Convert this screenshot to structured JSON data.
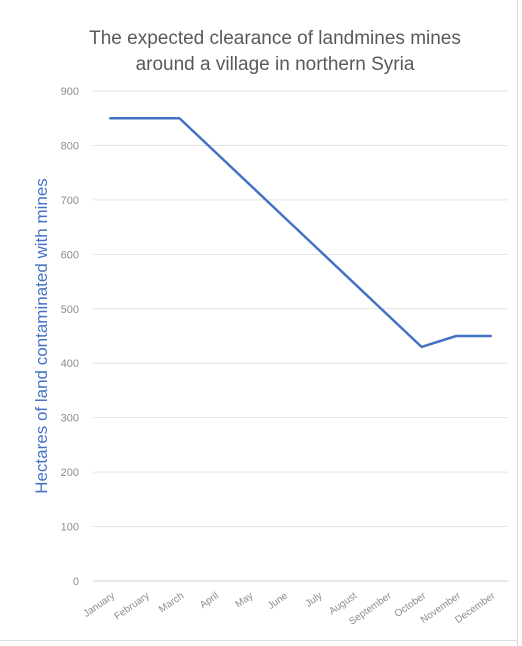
{
  "chart_data": {
    "type": "line",
    "title_lines": [
      "The expected clearance of landmines mines",
      "around a village in northern Syria"
    ],
    "xlabel": "",
    "ylabel": "Hectares of land contaminated with mines",
    "categories": [
      "January",
      "February",
      "March",
      "April",
      "May",
      "June",
      "July",
      "August",
      "September",
      "October",
      "November",
      "December"
    ],
    "series": [
      {
        "values": [
          850,
          850,
          850,
          790,
          730,
          670,
          610,
          550,
          490,
          430,
          450,
          450
        ]
      }
    ],
    "ylim": [
      0,
      900
    ],
    "yticks": [
      0,
      100,
      200,
      300,
      400,
      500,
      600,
      700,
      800,
      900
    ],
    "grid": true,
    "legend": "none",
    "colors": {
      "line": "#4472c4",
      "ylabel": "#4472c4",
      "grid": "#e3e3e3",
      "tick": "#8c8c8c",
      "title": "#595959"
    }
  }
}
